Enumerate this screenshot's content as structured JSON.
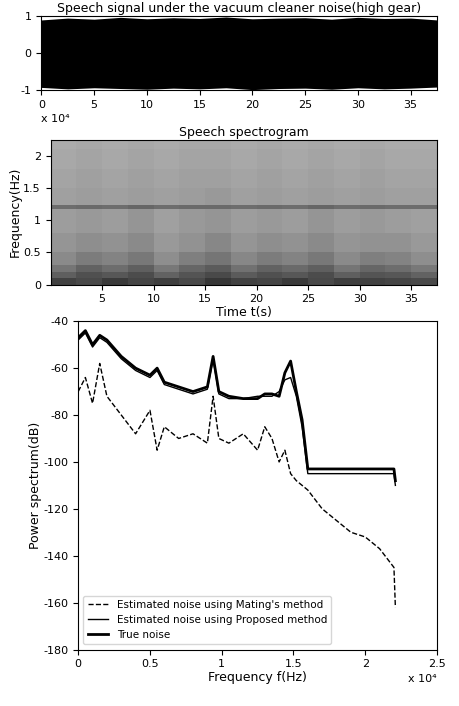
{
  "chart_data": [
    {
      "type": "area",
      "title": "Speech signal under the vacuum cleaner noise(high gear)",
      "x": [
        0,
        2.5,
        5,
        7.5,
        10,
        12.5,
        15,
        17.5,
        20,
        22.5,
        25,
        27.5,
        30,
        32.5,
        35,
        37.5
      ],
      "values_high": [
        0.9,
        0.95,
        0.92,
        0.97,
        0.93,
        0.96,
        0.94,
        0.98,
        0.93,
        0.95,
        0.96,
        0.92,
        0.97,
        0.94,
        0.95,
        0.9
      ],
      "values_low": [
        -0.92,
        -0.96,
        -0.93,
        -0.95,
        -0.97,
        -0.94,
        -0.96,
        -0.93,
        -0.98,
        -0.95,
        -0.94,
        -0.97,
        -0.93,
        -0.96,
        -0.94,
        -0.91
      ],
      "color": "#000000",
      "xlim": [
        0,
        37.5
      ],
      "xticks": [
        0,
        5,
        10,
        15,
        20,
        25,
        30,
        35
      ],
      "ylim": [
        -1,
        1
      ],
      "yticks": [
        -1,
        0,
        1
      ],
      "annotations": [
        "x 10⁴"
      ]
    },
    {
      "type": "heatmap",
      "title": "Speech spectrogram",
      "x_label": "Time t(s)",
      "y_label": "Frequency(Hz)",
      "x": [
        0,
        2.5,
        5,
        7.5,
        10,
        12.5,
        15,
        17.5,
        20,
        22.5,
        25,
        27.5,
        30,
        32.5,
        35,
        37.5
      ],
      "y": [
        0,
        0.1,
        0.2,
        0.3,
        0.5,
        0.8,
        1.18,
        1.24,
        1.5,
        1.8,
        2.1,
        2.25
      ],
      "values": [
        [
          72,
          70,
          74,
          71,
          73,
          70,
          75,
          72,
          71,
          74,
          70,
          73,
          72,
          71,
          70
        ],
        [
          64,
          68,
          66,
          69,
          63,
          67,
          70,
          65,
          68,
          66,
          69,
          64,
          67,
          66,
          63
        ],
        [
          58,
          63,
          60,
          64,
          57,
          62,
          65,
          59,
          63,
          61,
          64,
          58,
          62,
          60,
          57
        ],
        [
          52,
          56,
          54,
          57,
          51,
          55,
          58,
          53,
          56,
          54,
          57,
          52,
          55,
          54,
          51
        ],
        [
          49,
          51,
          50,
          52,
          48,
          50,
          53,
          49,
          51,
          50,
          52,
          49,
          50,
          50,
          48
        ],
        [
          47,
          48,
          47,
          49,
          46,
          48,
          49,
          47,
          48,
          47,
          49,
          47,
          48,
          47,
          46
        ],
        [
          60,
          61,
          60,
          62,
          60,
          61,
          61,
          60,
          61,
          60,
          62,
          60,
          61,
          60,
          60
        ],
        [
          46,
          47,
          46,
          47,
          46,
          47,
          48,
          46,
          47,
          46,
          47,
          46,
          47,
          46,
          46
        ],
        [
          45,
          46,
          45,
          46,
          45,
          46,
          46,
          45,
          46,
          45,
          46,
          45,
          46,
          45,
          45
        ],
        [
          44,
          45,
          44,
          45,
          44,
          45,
          45,
          44,
          45,
          44,
          45,
          44,
          45,
          44,
          44
        ],
        [
          43,
          44,
          43,
          44,
          43,
          44,
          44,
          43,
          44,
          43,
          44,
          43,
          44,
          43,
          43
        ]
      ],
      "zlim": [
        20,
        90
      ],
      "xlim": [
        0,
        37.5
      ],
      "xticks": [
        5,
        10,
        15,
        20,
        25,
        30,
        35
      ],
      "ylim": [
        0,
        2.25
      ],
      "yticks": [
        0,
        0.5,
        1,
        1.5,
        2
      ]
    },
    {
      "type": "line",
      "x_label": "Frequency f(Hz)",
      "y_label": "Power spectrum(dB)",
      "x": [
        0,
        0.05,
        0.1,
        0.15,
        0.2,
        0.3,
        0.4,
        0.5,
        0.55,
        0.6,
        0.7,
        0.8,
        0.9,
        0.94,
        0.98,
        1.05,
        1.15,
        1.25,
        1.3,
        1.35,
        1.4,
        1.44,
        1.48,
        1.52,
        1.56,
        1.6,
        1.7,
        1.8,
        1.9,
        2.0,
        2.1,
        2.2,
        2.21
      ],
      "series": [
        {
          "name": "Estimated noise using Mating's method",
          "color": "#000000",
          "line_style": "dashed",
          "values": [
            -70,
            -64,
            -75,
            -58,
            -72,
            -80,
            -88,
            -78,
            -95,
            -85,
            -90,
            -88,
            -92,
            -72,
            -90,
            -92,
            -88,
            -95,
            -85,
            -90,
            -100,
            -95,
            -105,
            -108,
            -110,
            -112,
            -120,
            -125,
            -130,
            -132,
            -137,
            -145,
            -162
          ]
        },
        {
          "name": "Estimated noise using Proposed method",
          "color": "#000000",
          "line_style": "solid",
          "values": [
            -48,
            -45,
            -51,
            -47,
            -49,
            -56,
            -61,
            -64,
            -61,
            -67,
            -69,
            -71,
            -69,
            -56,
            -71,
            -73,
            -73,
            -72,
            -72,
            -72,
            -70,
            -65,
            -64,
            -72,
            -85,
            -105,
            -105,
            -105,
            -105,
            -105,
            -105,
            -105,
            -110
          ]
        },
        {
          "name": "True noise",
          "color": "#000000",
          "line_style": "solid",
          "values": [
            -47,
            -44,
            -50,
            -46,
            -48,
            -55,
            -60,
            -63,
            -60,
            -66,
            -68,
            -70,
            -68,
            -55,
            -70,
            -72,
            -73,
            -73,
            -71,
            -71,
            -72,
            -62,
            -57,
            -70,
            -82,
            -103,
            -103,
            -103,
            -103,
            -103,
            -103,
            -103,
            -108
          ]
        }
      ],
      "legend": "lower left",
      "xlim": [
        0,
        2.5
      ],
      "xticks": [
        0,
        0.5,
        1,
        1.5,
        2,
        2.5
      ],
      "ylim": [
        -180,
        -40
      ],
      "yticks": [
        -180,
        -160,
        -140,
        -120,
        -100,
        -80,
        -60,
        -40
      ],
      "annotations": [
        "x 10⁴"
      ]
    }
  ]
}
